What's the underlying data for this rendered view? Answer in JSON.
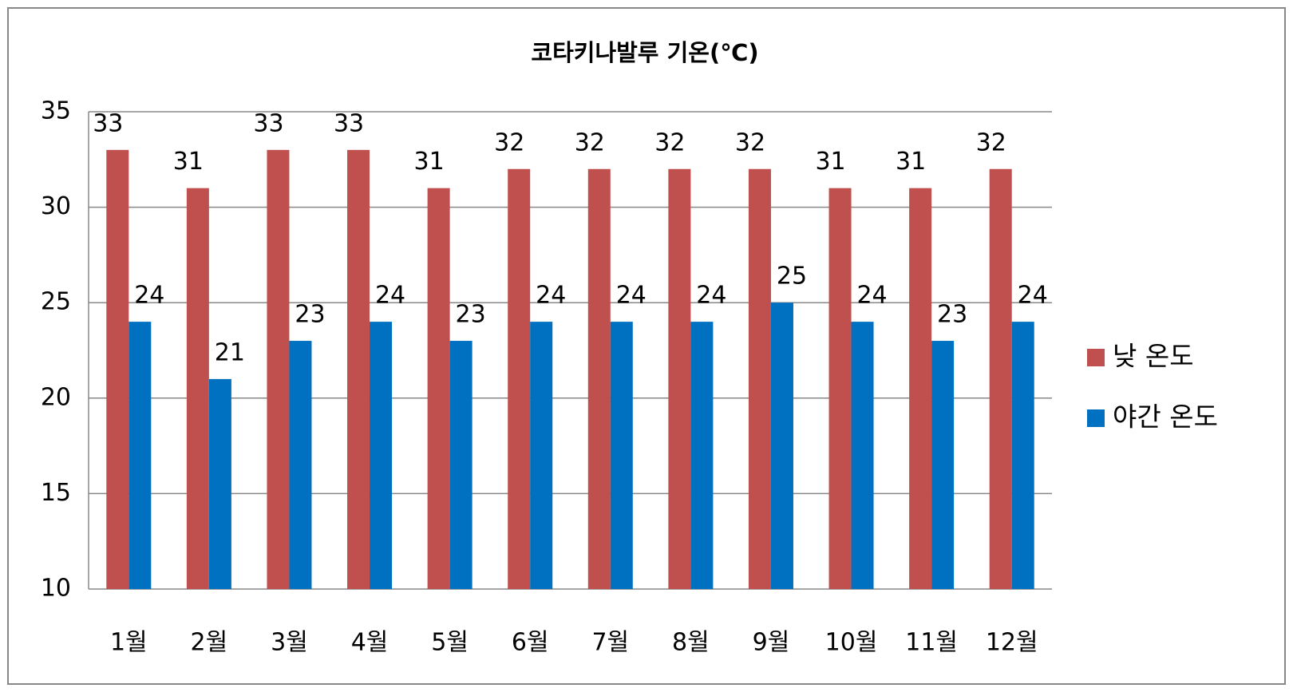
{
  "chart_data": {
    "type": "bar",
    "title": "코타키나발루 기온(℃)",
    "categories": [
      "1월",
      "2월",
      "3월",
      "4월",
      "5월",
      "6월",
      "7월",
      "8월",
      "9월",
      "10월",
      "11월",
      "12월"
    ],
    "series": [
      {
        "name": "낮 온도",
        "color": "#c0504d",
        "values": [
          33,
          31,
          33,
          33,
          31,
          32,
          32,
          32,
          32,
          31,
          31,
          32
        ]
      },
      {
        "name": "야간 온도",
        "color": "#0070c0",
        "values": [
          24,
          21,
          23,
          24,
          23,
          24,
          24,
          24,
          25,
          24,
          23,
          24
        ]
      }
    ],
    "ylim": [
      10,
      35
    ],
    "yticks": [
      10,
      15,
      20,
      25,
      30,
      35
    ],
    "grid": true,
    "legend": "right"
  }
}
